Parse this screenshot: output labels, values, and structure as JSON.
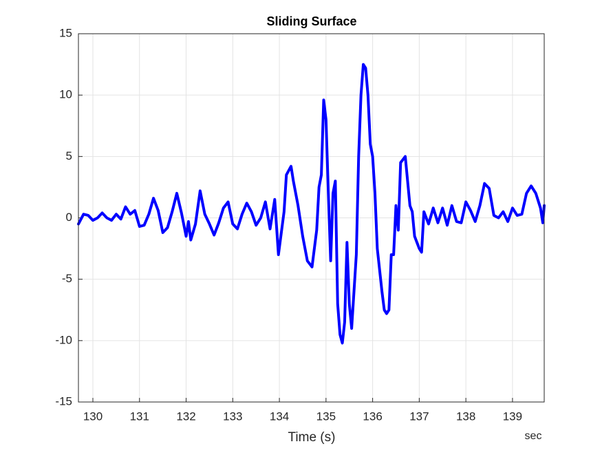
{
  "chart_data": {
    "type": "line",
    "title": "Sliding Surface",
    "xlabel": "Time (s)",
    "annotation": "sec",
    "x": [
      129.69,
      129.8,
      129.9,
      130.0,
      130.1,
      130.2,
      130.3,
      130.4,
      130.5,
      130.6,
      130.7,
      130.8,
      130.9,
      131.0,
      131.1,
      131.2,
      131.3,
      131.4,
      131.5,
      131.6,
      131.7,
      131.8,
      131.9,
      132.0,
      132.05,
      132.1,
      132.2,
      132.3,
      132.4,
      132.5,
      132.6,
      132.7,
      132.8,
      132.9,
      133.0,
      133.1,
      133.2,
      133.3,
      133.4,
      133.5,
      133.6,
      133.7,
      133.8,
      133.9,
      133.98,
      134.1,
      134.15,
      134.25,
      134.3,
      134.4,
      134.5,
      134.6,
      134.7,
      134.8,
      134.85,
      134.9,
      134.95,
      135.0,
      135.05,
      135.1,
      135.15,
      135.2,
      135.25,
      135.3,
      135.35,
      135.4,
      135.45,
      135.5,
      135.55,
      135.6,
      135.65,
      135.7,
      135.75,
      135.8,
      135.85,
      135.9,
      135.95,
      136.0,
      136.05,
      136.1,
      136.2,
      136.25,
      136.3,
      136.35,
      136.4,
      136.45,
      136.5,
      136.55,
      136.6,
      136.7,
      136.75,
      136.8,
      136.85,
      136.9,
      137.0,
      137.05,
      137.1,
      137.2,
      137.3,
      137.4,
      137.5,
      137.6,
      137.7,
      137.8,
      137.9,
      138.0,
      138.1,
      138.2,
      138.3,
      138.4,
      138.5,
      138.6,
      138.7,
      138.8,
      138.9,
      139.0,
      139.1,
      139.2,
      139.3,
      139.4,
      139.5,
      139.6,
      139.65,
      139.68
    ],
    "values": [
      -0.5,
      0.3,
      0.2,
      -0.2,
      0.0,
      0.4,
      0.0,
      -0.2,
      0.3,
      -0.1,
      0.9,
      0.3,
      0.6,
      -0.7,
      -0.6,
      0.3,
      1.6,
      0.6,
      -1.2,
      -0.8,
      0.5,
      2.0,
      0.4,
      -1.5,
      -0.3,
      -1.8,
      -0.5,
      2.2,
      0.3,
      -0.5,
      -1.4,
      -0.4,
      0.8,
      1.3,
      -0.5,
      -0.9,
      0.3,
      1.2,
      0.5,
      -0.6,
      0.0,
      1.3,
      -0.9,
      1.5,
      -3.0,
      0.5,
      3.5,
      4.2,
      3.0,
      1.0,
      -1.5,
      -3.5,
      -4.0,
      -1.0,
      2.5,
      3.5,
      9.6,
      8.0,
      2.0,
      -3.5,
      2.0,
      3.0,
      -7.0,
      -9.5,
      -10.2,
      -8.5,
      -2.0,
      -7.0,
      -9.0,
      -6.0,
      -3.0,
      5.0,
      10.0,
      12.5,
      12.2,
      10.0,
      6.0,
      5.0,
      2.0,
      -2.5,
      -6.0,
      -7.5,
      -7.8,
      -7.5,
      -3.0,
      -3.0,
      1.0,
      -1.0,
      4.5,
      5.0,
      3.0,
      1.0,
      0.5,
      -1.5,
      -2.5,
      -2.8,
      0.5,
      -0.5,
      0.8,
      -0.4,
      0.8,
      -0.6,
      1.0,
      -0.3,
      -0.4,
      1.3,
      0.6,
      -0.3,
      1.0,
      2.8,
      2.4,
      0.2,
      0.0,
      0.5,
      -0.3,
      0.8,
      0.2,
      0.3,
      2.0,
      2.6,
      2.0,
      0.8,
      -0.4,
      1.0
    ],
    "color": "#0000ff",
    "xlim": [
      129.69,
      139.68
    ],
    "xticks": [
      130,
      131,
      132,
      133,
      134,
      135,
      136,
      137,
      138,
      139
    ],
    "ylim": [
      -15,
      15
    ],
    "yticks": [
      -15,
      -10,
      -5,
      0,
      5,
      10,
      15
    ],
    "grid": true
  }
}
